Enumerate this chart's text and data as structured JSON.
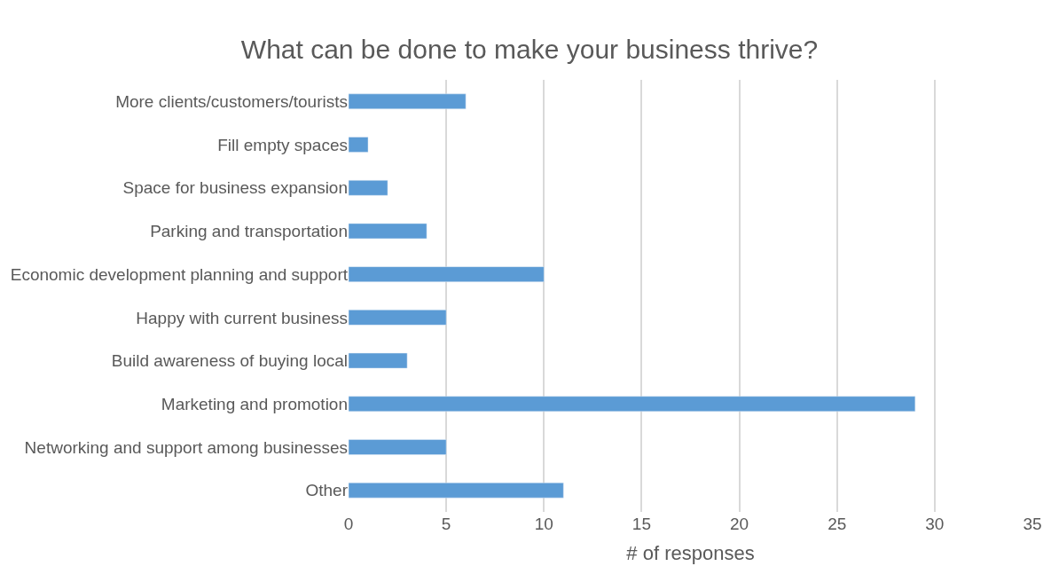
{
  "chart_data": {
    "type": "bar",
    "orientation": "horizontal",
    "title": "What can be done to make your business thrive?",
    "xlabel": "# of responses",
    "categories": [
      "More clients/customers/tourists",
      "Fill empty spaces",
      "Space for business expansion",
      "Parking and transportation",
      "Economic development planning and support",
      "Happy with current business",
      "Build awareness of buying local",
      "Marketing and promotion",
      "Networking and support among businesses",
      "Other"
    ],
    "values": [
      6,
      1,
      2,
      4,
      10,
      5,
      3,
      29,
      5,
      11
    ],
    "color": "#5b9bd5",
    "xlim": [
      0,
      35
    ],
    "xticks": [
      0,
      5,
      10,
      15,
      20,
      25,
      30,
      35
    ],
    "grid": "x"
  }
}
